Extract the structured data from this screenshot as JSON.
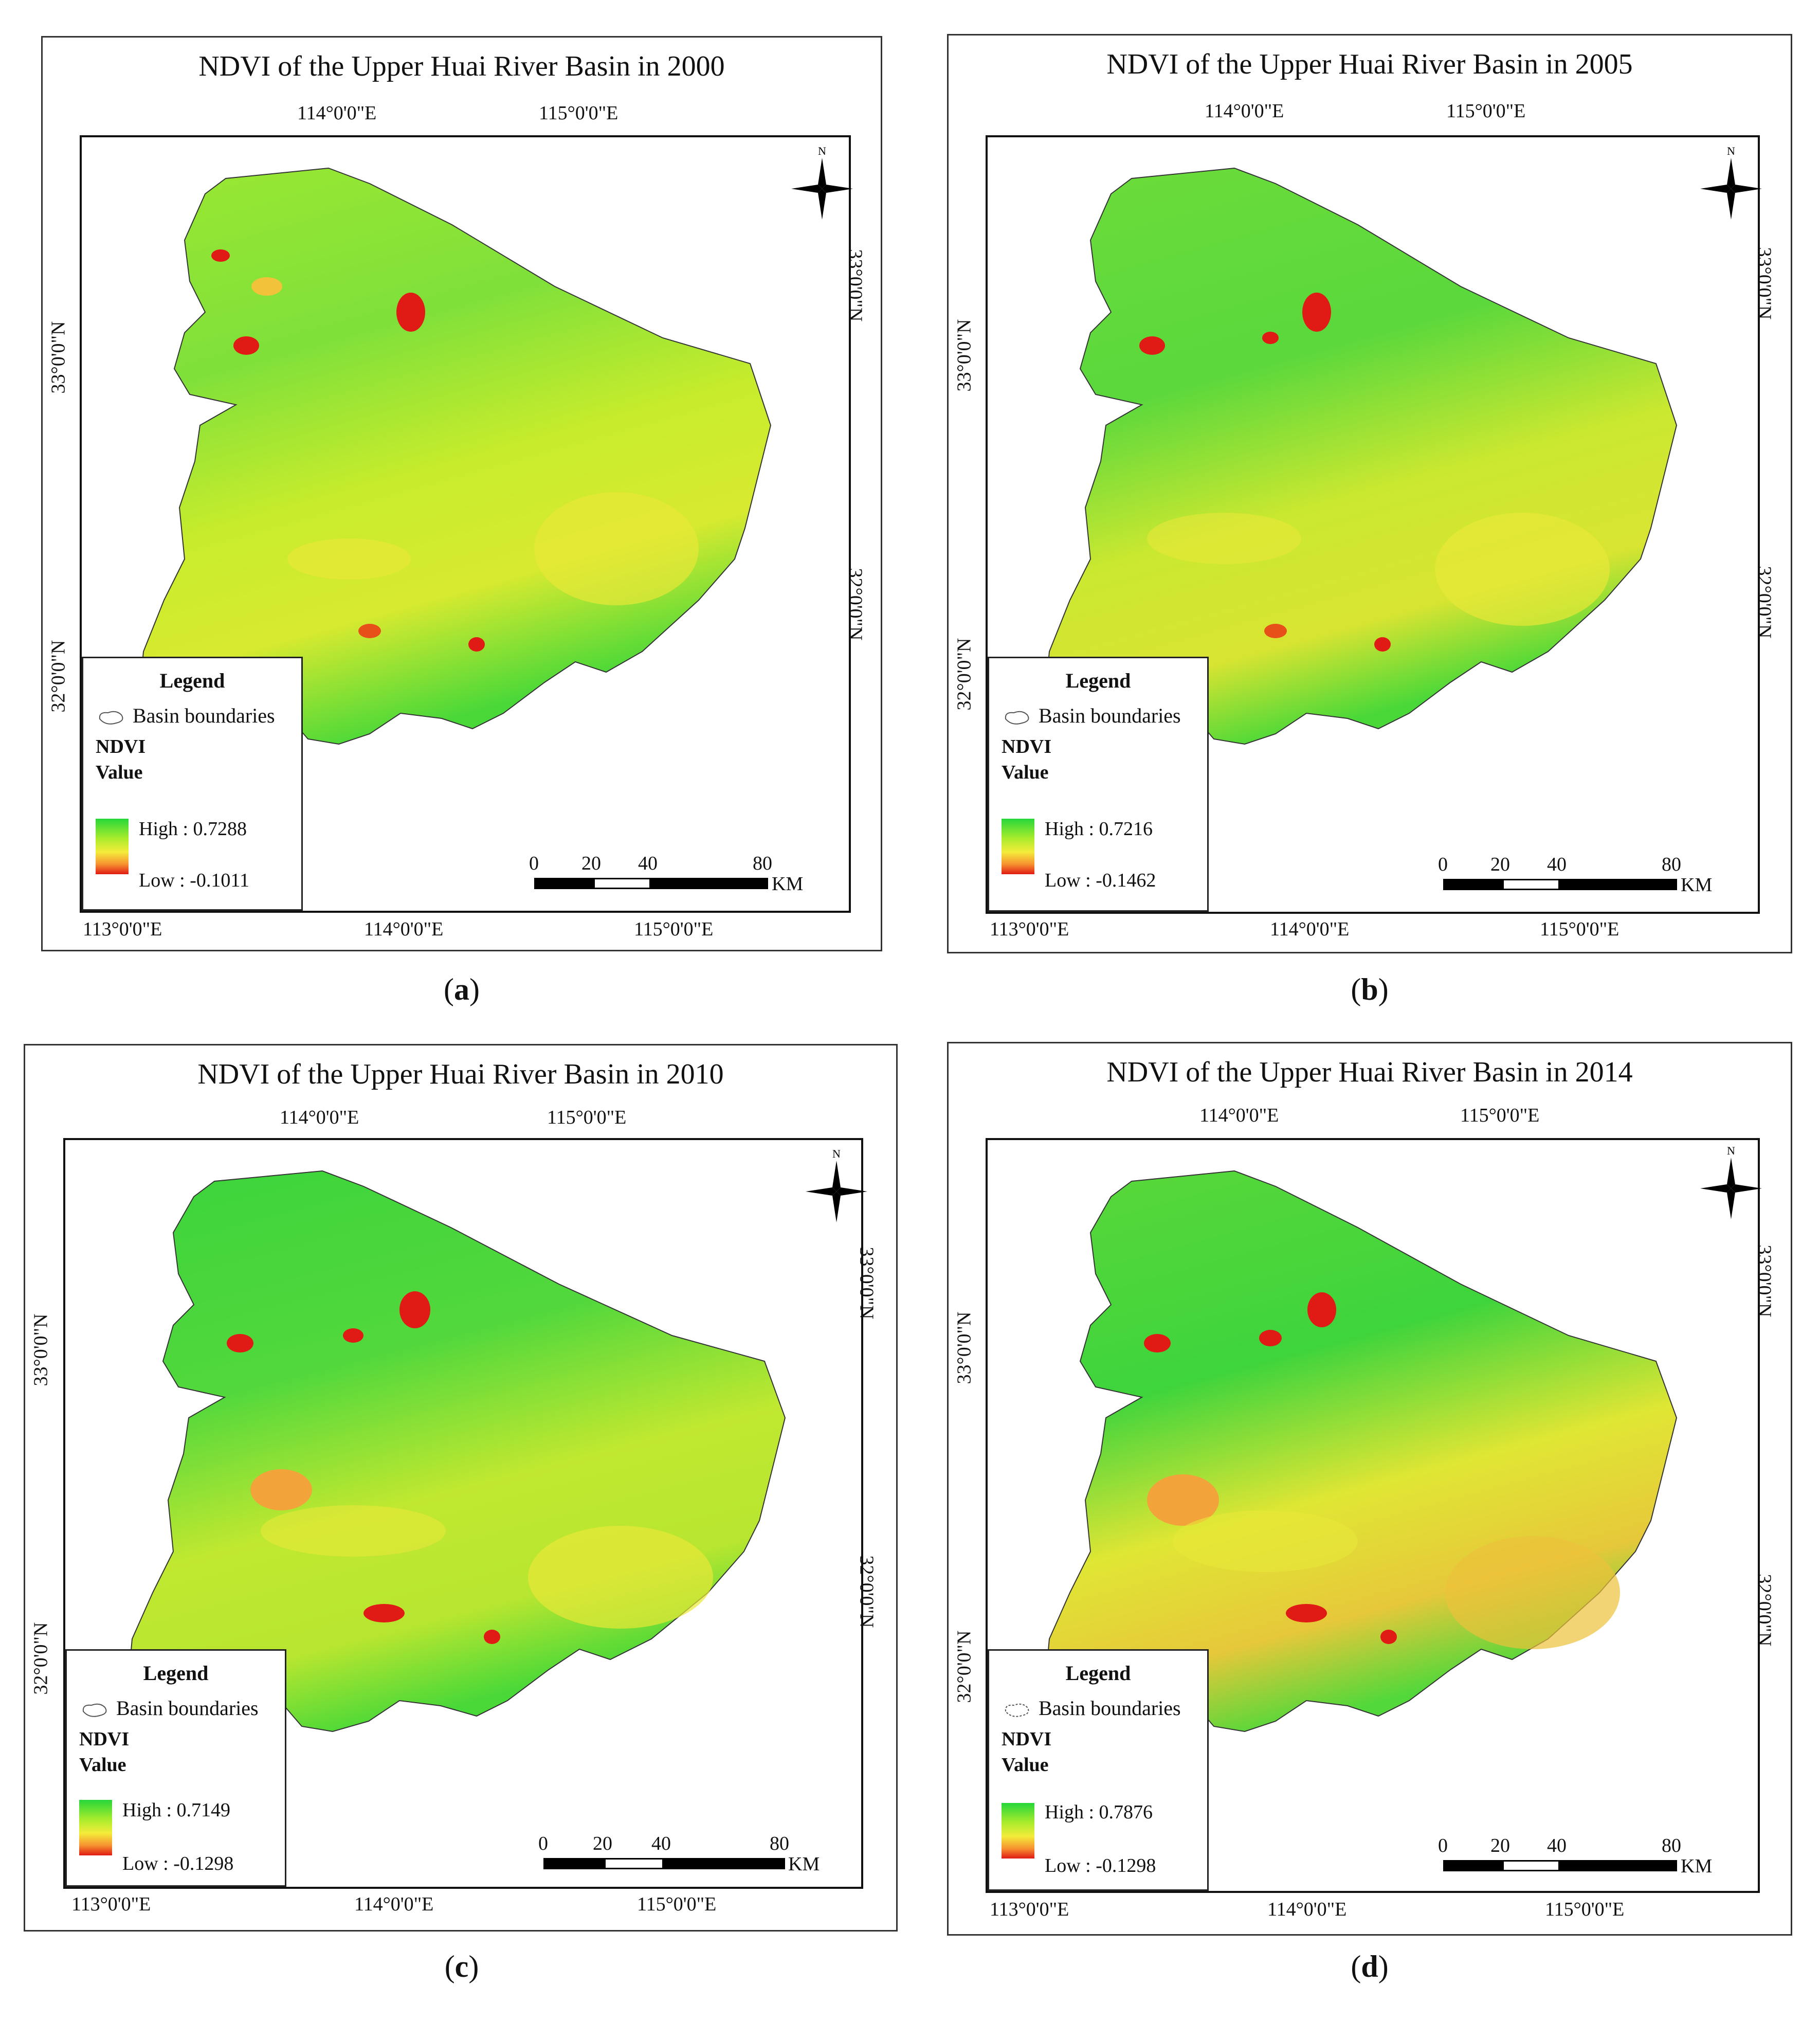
{
  "figure": {
    "panels": [
      {
        "id": "a",
        "title": "NDVI of the Upper Huai River Basin in 2000",
        "caption": "a",
        "top_lon": [
          "114°0'0\"E",
          "115°0'0\"E"
        ],
        "bottom_lon": [
          "113°0'0\"E",
          "114°0'0\"E",
          "115°0'0\"E"
        ],
        "left_lat": [
          "33°0'0\"N",
          "32°0'0\"N"
        ],
        "right_lat": [
          "33°0'0\"N",
          "32°0'0\"N"
        ],
        "legend": {
          "title": "Legend",
          "boundary": "Basin boundaries",
          "ndvi": "NDVI",
          "value": "Value",
          "high": "High : 0.7288",
          "low": "Low : -0.1011"
        }
      },
      {
        "id": "b",
        "title": "NDVI of the Upper Huai River Basin in 2005",
        "caption": "b",
        "top_lon": [
          "114°0'0\"E",
          "115°0'0\"E"
        ],
        "bottom_lon": [
          "113°0'0\"E",
          "114°0'0\"E",
          "115°0'0\"E"
        ],
        "left_lat": [
          "33°0'0\"N",
          "32°0'0\"N"
        ],
        "right_lat": [
          "33°0'0\"N",
          "32°0'0\"N"
        ],
        "legend": {
          "title": "Legend",
          "boundary": "Basin boundaries",
          "ndvi": "NDVI",
          "value": "Value",
          "high": "High : 0.7216",
          "low": "Low : -0.1462"
        }
      },
      {
        "id": "c",
        "title": "NDVI of the Upper Huai River Basin in 2010",
        "caption": "c",
        "top_lon": [
          "114°0'0\"E",
          "115°0'0\"E"
        ],
        "bottom_lon": [
          "113°0'0\"E",
          "114°0'0\"E",
          "115°0'0\"E"
        ],
        "left_lat": [
          "33°0'0\"N",
          "32°0'0\"N"
        ],
        "right_lat": [
          "33°0'0\"N",
          "32°0'0\"N"
        ],
        "legend": {
          "title": "Legend",
          "boundary": "Basin boundaries",
          "ndvi": "NDVI",
          "value": "Value",
          "high": "High : 0.7149",
          "low": "Low : -0.1298"
        }
      },
      {
        "id": "d",
        "title": "NDVI of the Upper Huai River Basin in 2014",
        "caption": "d",
        "top_lon": [
          "114°0'0\"E",
          "115°0'0\"E"
        ],
        "bottom_lon": [
          "113°0'0\"E",
          "114°0'0\"E",
          "115°0'0\"E"
        ],
        "left_lat": [
          "33°0'0\"N",
          "32°0'0\"N"
        ],
        "right_lat": [
          "33°0'0\"N",
          "32°0'0\"N"
        ],
        "legend": {
          "title": "Legend",
          "boundary": "Basin boundaries",
          "ndvi": "NDVI",
          "value": "Value",
          "high": "High : 0.7876",
          "low": "Low : -0.1298"
        }
      }
    ],
    "scale": {
      "ticks": [
        "0",
        "20",
        "40",
        "80"
      ],
      "unit": "KM"
    },
    "north_label": "N",
    "colors": {
      "high": "#26d63a",
      "mid": "#f4ec3a",
      "low": "#e01a14"
    }
  }
}
